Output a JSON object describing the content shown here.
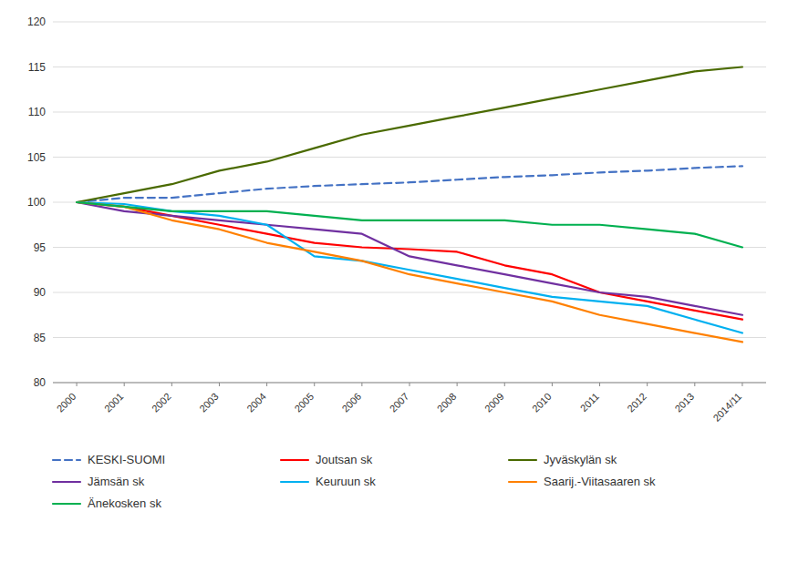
{
  "chart_data": {
    "type": "line",
    "categories": [
      "2000",
      "2001",
      "2002",
      "2003",
      "2004",
      "2005",
      "2006",
      "2007",
      "2008",
      "2009",
      "2010",
      "2011",
      "2012",
      "2013",
      "2014/11"
    ],
    "series": [
      {
        "name": "KESKI-SUOMI",
        "color": "#4472C4",
        "line_style": "dashed",
        "values": [
          100,
          100.5,
          100.5,
          101.0,
          101.5,
          101.8,
          102.0,
          102.2,
          102.5,
          102.8,
          103.0,
          103.3,
          103.5,
          103.8,
          104.0
        ]
      },
      {
        "name": "Joutsan sk",
        "color": "#FF0000",
        "line_style": "solid",
        "values": [
          100,
          99.5,
          98.5,
          97.5,
          96.5,
          95.5,
          95.0,
          94.8,
          94.5,
          93.0,
          92.0,
          90.0,
          89.0,
          88.0,
          87.0
        ]
      },
      {
        "name": "Jyväskylän sk",
        "color": "#4A6A00",
        "line_style": "solid",
        "values": [
          100,
          101.0,
          102.0,
          103.5,
          104.5,
          106.0,
          107.5,
          108.5,
          109.5,
          110.5,
          111.5,
          112.5,
          113.5,
          114.5,
          115.0
        ]
      },
      {
        "name": "Jämsän sk",
        "color": "#7030A0",
        "line_style": "solid",
        "values": [
          100,
          99.0,
          98.5,
          98.0,
          97.5,
          97.0,
          96.5,
          94.0,
          93.0,
          92.0,
          91.0,
          90.0,
          89.5,
          88.5,
          87.5
        ]
      },
      {
        "name": "Keuruun sk",
        "color": "#00B0F0",
        "line_style": "solid",
        "values": [
          100,
          99.8,
          99.0,
          98.5,
          97.5,
          94.0,
          93.5,
          92.5,
          91.5,
          90.5,
          89.5,
          89.0,
          88.5,
          87.0,
          85.5
        ]
      },
      {
        "name": "Saarij.-Viitasaaren sk",
        "color": "#FF8000",
        "line_style": "solid",
        "values": [
          100,
          99.5,
          98.0,
          97.0,
          95.5,
          94.5,
          93.5,
          92.0,
          91.0,
          90.0,
          89.0,
          87.5,
          86.5,
          85.5,
          84.5
        ]
      },
      {
        "name": "Änekosken sk",
        "color": "#00B050",
        "line_style": "solid",
        "values": [
          100,
          99.5,
          99.0,
          99.0,
          99.0,
          98.5,
          98.0,
          98.0,
          98.0,
          98.0,
          97.5,
          97.5,
          97.0,
          96.5,
          95.0
        ]
      }
    ],
    "ylim": [
      80,
      120
    ],
    "yticks": [
      80,
      85,
      90,
      95,
      100,
      105,
      110,
      115,
      120
    ],
    "grid": true,
    "legend": "bottom"
  }
}
